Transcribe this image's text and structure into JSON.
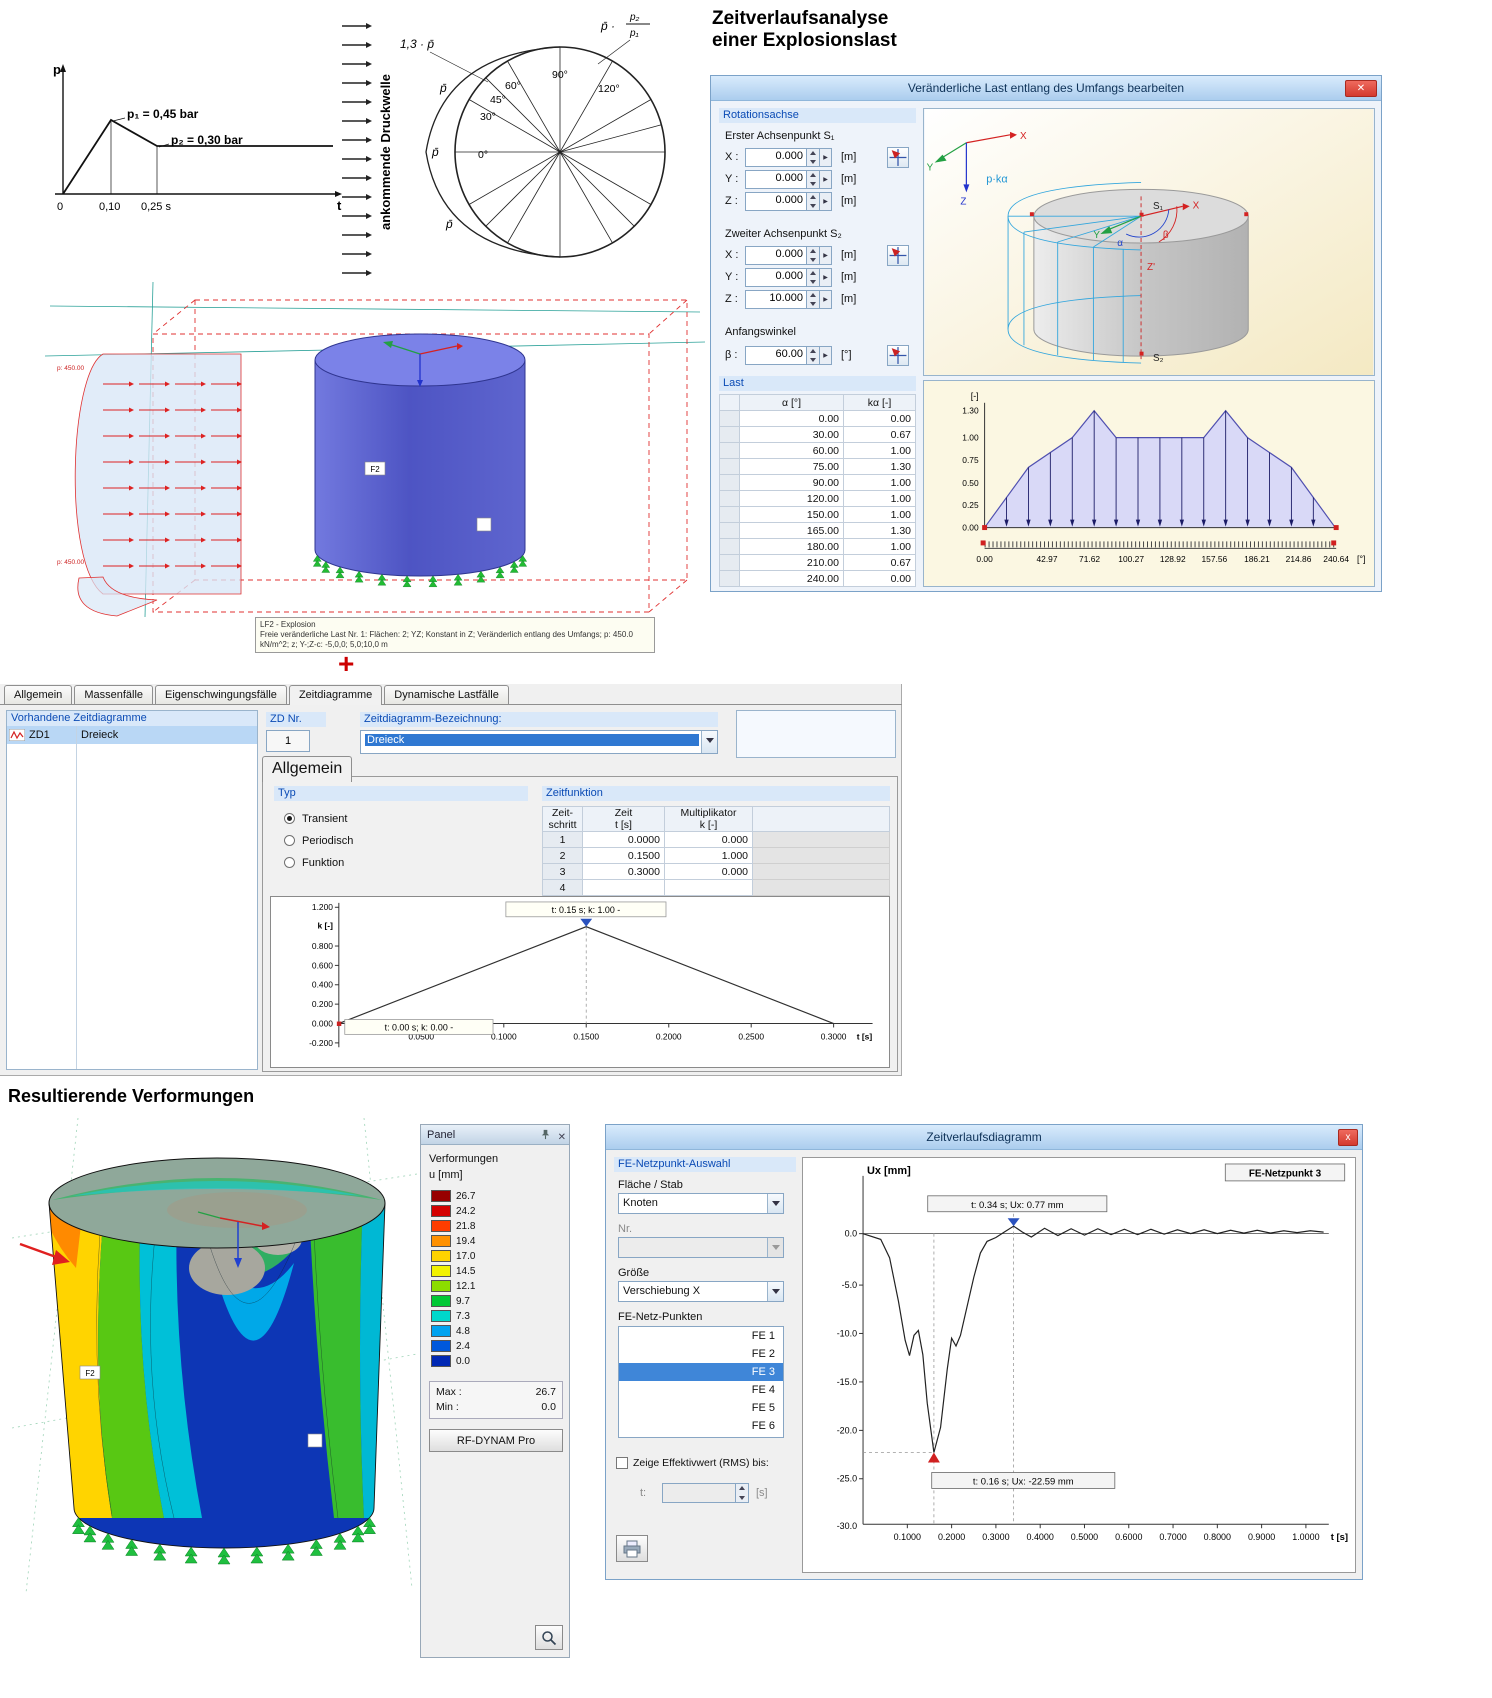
{
  "page": {
    "title": "Zeitverlaufsanalyse\neiner Explosionslast",
    "plus": "+",
    "result_heading": "Resultierende Verformungen"
  },
  "sketch": {
    "p_axis": "p",
    "t_axis": "t",
    "zero": "0",
    "t1": "0,10",
    "t2": "0,25 s",
    "p1": "p₁ = 0,45 bar",
    "p2": "p₂ = 0,30 bar"
  },
  "circle": {
    "wave": "ankommende Druckwelle",
    "factor": "1,3 · p̄",
    "ratio_prefix": "p̄ ·",
    "ratio_top": "p₂",
    "ratio_bottom": "p₁",
    "pbar": "p̄",
    "a0": "0°",
    "a30": "30°",
    "a45": "45°",
    "a60": "60°",
    "a90": "90°",
    "a120": "120°"
  },
  "load_dialog": {
    "title": "Veränderliche Last entlang des Umfangs bearbeiten",
    "close": "✕",
    "rotationsachse": "Rotationsachse",
    "s1_heading": "Erster Achsenpunkt S₁",
    "s2_heading": "Zweiter Achsenpunkt S₂",
    "anfangswinkel": "Anfangswinkel",
    "lx": "X :",
    "ly": "Y :",
    "lz": "Z :",
    "lb": "β :",
    "unit_m": "[m]",
    "unit_deg": "[°]",
    "s1x": "0.000",
    "s1y": "0.000",
    "s1z": "0.000",
    "s2x": "0.000",
    "s2y": "0.000",
    "s2z": "10.000",
    "beta": "60.00",
    "last": "Last",
    "col_alpha": "α [°]",
    "col_k": "kα [-]",
    "rows": [
      [
        "0.00",
        "0.00"
      ],
      [
        "30.00",
        "0.67"
      ],
      [
        "60.00",
        "1.00"
      ],
      [
        "75.00",
        "1.30"
      ],
      [
        "90.00",
        "1.00"
      ],
      [
        "120.00",
        "1.00"
      ],
      [
        "150.00",
        "1.00"
      ],
      [
        "165.00",
        "1.30"
      ],
      [
        "180.00",
        "1.00"
      ],
      [
        "210.00",
        "0.67"
      ],
      [
        "240.00",
        "0.00"
      ]
    ],
    "preview": {
      "x": "X",
      "y": "Y",
      "z": "Z",
      "xc": "X",
      "yc": "Y",
      "zp": "Z'",
      "alpha": "α",
      "beta": "β",
      "s1": "S₁",
      "s2": "S₂",
      "pk": "p·kα"
    }
  },
  "model": {
    "tooltip1": "LF2 - Explosion",
    "tooltip2": "Freie veränderliche Last Nr. 1: Flächen: 2; YZ; Konstant in Z; Veränderlich entlang des Umfangs; p: 450.0 kN/m^2; z; Y-;Z-c: -5,0,0; 5,0;10,0 m",
    "p_marker": "p: 450.00",
    "f2": "F2"
  },
  "dynam": {
    "tabs": [
      "Allgemein",
      "Massenfälle",
      "Eigenschwingungsfälle",
      "Zeitdiagramme",
      "Dynamische Lastfälle"
    ],
    "list_caption": "Vorhandene Zeitdiagramme",
    "item_id": "ZD1",
    "item_name": "Dreieck",
    "zd_nr": "ZD Nr.",
    "zd_val": "1",
    "bez_label": "Zeitdiagramm-Bezeichnung:",
    "bez_value": "Dreieck",
    "subtab": "Allgemein",
    "typ": "Typ",
    "radio1": "Transient",
    "radio2": "Periodisch",
    "radio3": "Funktion",
    "zeitfunktion": "Zeitfunktion",
    "th1a": "Zeit-",
    "th1b": "schritt",
    "th2a": "Zeit",
    "th2b": "t [s]",
    "th3a": "Multiplikator",
    "th3b": "k [-]",
    "trows": [
      [
        "1",
        "0.0000",
        "0.000"
      ],
      [
        "2",
        "0.1500",
        "1.000"
      ],
      [
        "3",
        "0.3000",
        "0.000"
      ],
      [
        "4",
        "",
        ""
      ]
    ]
  },
  "panel": {
    "title": "Panel",
    "verformungen": "Verformungen",
    "u_mm": "u [mm]",
    "scale": [
      {
        "v": "26.7",
        "c": "#970000"
      },
      {
        "v": "24.2",
        "c": "#d40000"
      },
      {
        "v": "21.8",
        "c": "#ff3d00"
      },
      {
        "v": "19.4",
        "c": "#ff9100"
      },
      {
        "v": "17.0",
        "c": "#ffd300"
      },
      {
        "v": "14.5",
        "c": "#f2f200"
      },
      {
        "v": "12.1",
        "c": "#8cdd00"
      },
      {
        "v": "9.7",
        "c": "#00c835"
      },
      {
        "v": "7.3",
        "c": "#00d8cb"
      },
      {
        "v": "4.8",
        "c": "#00a3f0"
      },
      {
        "v": "2.4",
        "c": "#0058dc"
      },
      {
        "v": "0.0",
        "c": "#0028b4"
      }
    ],
    "max_label": "Max :",
    "max_val": "26.7",
    "min_label": "Min :",
    "min_val": "0.0",
    "button": "RF-DYNAM Pro"
  },
  "ztv": {
    "title": "Zeitverlaufsdiagramm",
    "close": "x",
    "group": "FE-Netzpunkt-Auswahl",
    "flaeche_stab": "Fläche / Stab",
    "knoten": "Knoten",
    "nr": "Nr.",
    "groesse": "Größe",
    "verschiebung": "Verschiebung X",
    "fe_label": "FE-Netz-Punkten",
    "fe_items": [
      "FE 1",
      "FE 2",
      "FE 3",
      "FE 4",
      "FE 5",
      "FE 6"
    ],
    "rms": "Zeige Effektivwert (RMS) bis:",
    "t_label": "t:",
    "unit_s": "[s]"
  },
  "charts": {
    "kalpha": {
      "type": "area",
      "x": [
        0,
        30,
        60,
        75,
        90,
        120,
        150,
        165,
        180,
        210,
        240
      ],
      "y": [
        0,
        0.67,
        1,
        1.3,
        1,
        1,
        1,
        1.3,
        1,
        0.67,
        0
      ],
      "xmax": 240.64,
      "ymax": 1.3,
      "ylabel": "[-]",
      "xunit": "[°]",
      "yticks": [
        "1.30",
        "1.00",
        "0.75",
        "0.50",
        "0.25",
        "0.00"
      ],
      "xticks": [
        "0.00",
        "42.97",
        "71.62",
        "100.27",
        "128.92",
        "157.56",
        "186.21",
        "214.86",
        "240.64"
      ]
    },
    "zeit": {
      "type": "line",
      "x": [
        0,
        0.15,
        0.3
      ],
      "y": [
        0,
        1,
        0
      ],
      "ylabel": "k [-]",
      "xlabel": "t [s]",
      "yticks": [
        "1.200",
        "0.800",
        "0.600",
        "0.400",
        "0.200",
        "0.000",
        "-0.200"
      ],
      "xticks": [
        "0.0500",
        "0.1000",
        "0.1500",
        "0.2000",
        "0.2500",
        "0.3000"
      ],
      "peak_label": "t: 0.15 s; k: 1.00 -",
      "origin_label": "t: 0.00 s; k: 0.00 -"
    },
    "ux": {
      "type": "line",
      "title": "FE-Netzpunkt 3",
      "ylabel": "Ux [mm]",
      "xlabel": "t [s]",
      "yticks": [
        "0.0",
        "-5.0",
        "-10.0",
        "-15.0",
        "-20.0",
        "-25.0",
        "-30.0"
      ],
      "xticks": [
        "0.1000",
        "0.2000",
        "0.3000",
        "0.4000",
        "0.5000",
        "0.6000",
        "0.7000",
        "0.8000",
        "0.9000",
        "1.0000"
      ],
      "max_label": "t: 0.34 s; Ux: 0.77 mm",
      "min_label": "t: 0.16 s; Ux: -22.59 mm",
      "x": [
        0,
        0.04,
        0.06,
        0.08,
        0.095,
        0.105,
        0.115,
        0.125,
        0.135,
        0.145,
        0.16,
        0.175,
        0.19,
        0.2,
        0.21,
        0.22,
        0.235,
        0.25,
        0.265,
        0.28,
        0.3,
        0.32,
        0.34,
        0.36,
        0.38,
        0.41,
        0.44,
        0.47,
        0.5,
        0.53,
        0.56,
        0.59,
        0.62,
        0.65,
        0.68,
        0.71,
        0.74,
        0.77,
        0.8,
        0.83,
        0.86,
        0.89,
        0.92,
        0.95,
        0.98,
        1.01,
        1.04
      ],
      "y": [
        0,
        -0.6,
        -2.5,
        -7,
        -11,
        -12.6,
        -10.5,
        -10,
        -12.5,
        -17.5,
        -22.59,
        -20,
        -14,
        -10.8,
        -11.6,
        -10.5,
        -7.5,
        -4.5,
        -2,
        -0.8,
        -0.4,
        0.2,
        0.77,
        0.15,
        -0.35,
        0.55,
        -0.2,
        0.5,
        -0.15,
        0.5,
        -0.1,
        0.45,
        -0.1,
        0.45,
        -0.05,
        0.4,
        0,
        0.4,
        0,
        0.35,
        0.05,
        0.35,
        0.05,
        0.3,
        0.1,
        0.3,
        0.15
      ]
    }
  }
}
